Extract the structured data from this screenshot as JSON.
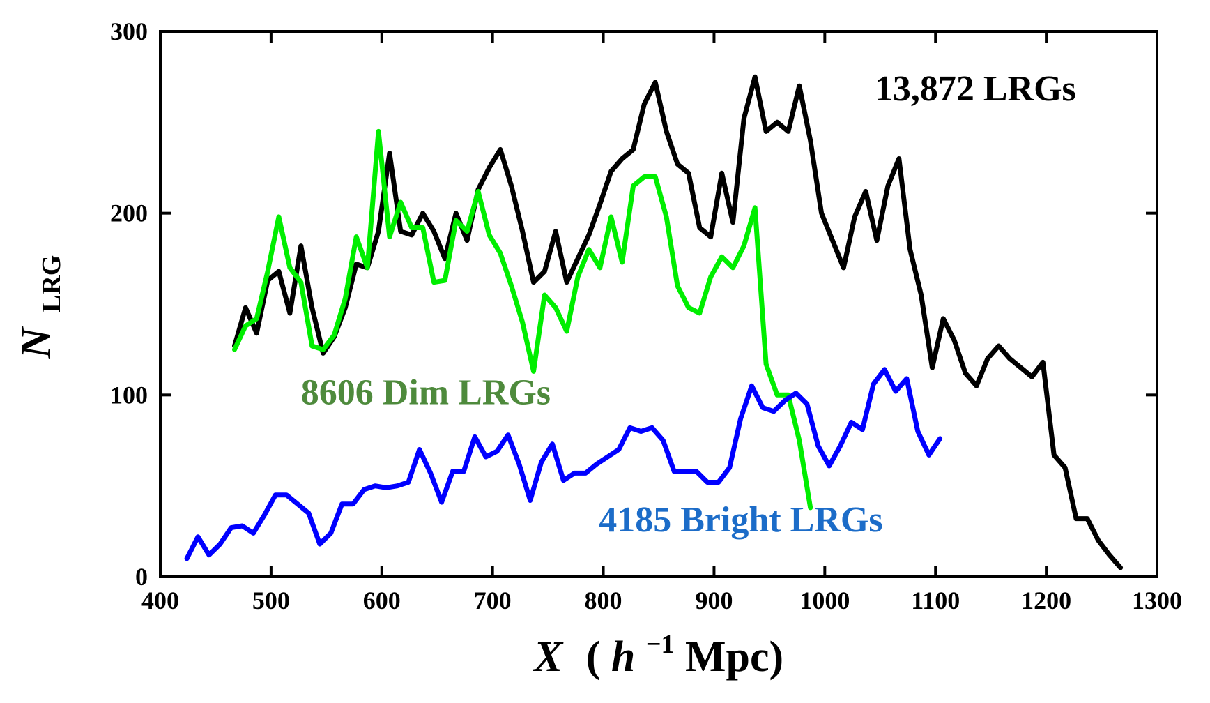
{
  "chart_data": {
    "type": "line",
    "title": "",
    "xlabel": {
      "var": "X",
      "open": "(",
      "h": "h",
      "exp": "−1",
      "unit": " Mpc)"
    },
    "ylabel": {
      "var": "N",
      "sub": "LRG"
    },
    "xlim": [
      400,
      1300
    ],
    "ylim": [
      0,
      300
    ],
    "xticks": [
      400,
      500,
      600,
      700,
      800,
      900,
      1000,
      1100,
      1200,
      1300
    ],
    "yticks": [
      0,
      100,
      200,
      300
    ],
    "grid": false,
    "series": [
      {
        "name": "13,872 LRGs",
        "color": "#000000",
        "label_color": "#000000",
        "x": [
          467,
          477,
          487,
          497,
          507,
          517,
          527,
          537,
          547,
          557,
          567,
          577,
          587,
          597,
          607,
          617,
          627,
          637,
          647,
          657,
          667,
          677,
          687,
          697,
          707,
          717,
          727,
          737,
          747,
          757,
          767,
          777,
          787,
          797,
          807,
          817,
          827,
          837,
          847,
          857,
          867,
          877,
          887,
          897,
          907,
          917,
          927,
          937,
          947,
          957,
          967,
          977,
          987,
          997,
          1007,
          1017,
          1027,
          1037,
          1047,
          1057,
          1067,
          1077,
          1087,
          1097,
          1107,
          1117,
          1127,
          1137,
          1147,
          1157,
          1167,
          1177,
          1187,
          1197,
          1207,
          1217,
          1227,
          1237,
          1247,
          1257,
          1267
        ],
        "y": [
          127,
          148,
          134,
          163,
          168,
          145,
          182,
          148,
          123,
          132,
          148,
          172,
          170,
          190,
          233,
          190,
          188,
          200,
          190,
          175,
          200,
          185,
          213,
          225,
          235,
          215,
          190,
          162,
          168,
          190,
          162,
          175,
          188,
          205,
          223,
          230,
          235,
          260,
          272,
          245,
          227,
          222,
          192,
          187,
          222,
          195,
          252,
          275,
          245,
          250,
          245,
          270,
          240,
          200,
          185,
          170,
          198,
          212,
          185,
          215,
          230,
          180,
          155,
          115,
          142,
          130,
          112,
          105,
          120,
          127,
          120,
          115,
          110,
          118,
          67,
          60,
          32,
          32,
          20,
          12,
          5
        ]
      },
      {
        "name": "8606 Dim LRGs",
        "color": "#00ee00",
        "label_color": "#4e8a3c",
        "x": [
          467,
          477,
          487,
          497,
          507,
          517,
          527,
          537,
          547,
          557,
          567,
          577,
          587,
          597,
          607,
          617,
          627,
          637,
          647,
          657,
          667,
          677,
          687,
          697,
          707,
          717,
          727,
          737,
          747,
          757,
          767,
          777,
          787,
          797,
          807,
          817,
          827,
          837,
          847,
          857,
          867,
          877,
          887,
          897,
          907,
          917,
          927,
          937,
          947,
          957,
          967,
          977,
          987
        ],
        "y": [
          125,
          138,
          142,
          168,
          198,
          170,
          162,
          127,
          125,
          133,
          153,
          187,
          170,
          245,
          187,
          206,
          192,
          192,
          162,
          163,
          196,
          190,
          212,
          188,
          178,
          160,
          140,
          113,
          155,
          148,
          135,
          165,
          180,
          170,
          198,
          173,
          215,
          220,
          220,
          198,
          160,
          148,
          145,
          165,
          176,
          170,
          182,
          203,
          117,
          100,
          100,
          75,
          38
        ]
      },
      {
        "name": "4185 Bright LRGs",
        "color": "#0000ff",
        "label_color": "#1c6cc8",
        "x": [
          424,
          434,
          444,
          454,
          464,
          474,
          484,
          494,
          504,
          514,
          524,
          534,
          544,
          554,
          564,
          574,
          584,
          594,
          604,
          614,
          624,
          634,
          644,
          654,
          664,
          674,
          684,
          694,
          704,
          714,
          724,
          734,
          744,
          754,
          764,
          774,
          784,
          794,
          804,
          814,
          824,
          834,
          844,
          854,
          864,
          874,
          884,
          894,
          904,
          914,
          924,
          934,
          944,
          954,
          964,
          974,
          984,
          994,
          1004,
          1014,
          1024,
          1034,
          1044,
          1054,
          1064,
          1074,
          1084,
          1094,
          1104
        ],
        "y": [
          10,
          22,
          12,
          18,
          27,
          28,
          24,
          34,
          45,
          45,
          40,
          35,
          18,
          24,
          40,
          40,
          48,
          50,
          49,
          50,
          52,
          70,
          57,
          41,
          58,
          58,
          77,
          66,
          69,
          78,
          62,
          42,
          63,
          73,
          53,
          57,
          57,
          62,
          66,
          70,
          82,
          80,
          82,
          75,
          58,
          58,
          58,
          52,
          52,
          60,
          87,
          105,
          93,
          91,
          97,
          101,
          95,
          72,
          61,
          72,
          85,
          81,
          106,
          114,
          102,
          109,
          80,
          67,
          76
        ]
      }
    ],
    "annotations": [
      {
        "series": "13,872 LRGs",
        "text": "13,872 LRGs",
        "at_x": 1045,
        "at_y": 262
      },
      {
        "series": "8606 Dim LRGs",
        "text": "8606 Dim LRGs",
        "at_x": 527,
        "at_y": 95
      },
      {
        "series": "4185 Bright LRGs",
        "text": "4185 Bright LRGs",
        "at_x": 796,
        "at_y": 25
      }
    ]
  }
}
